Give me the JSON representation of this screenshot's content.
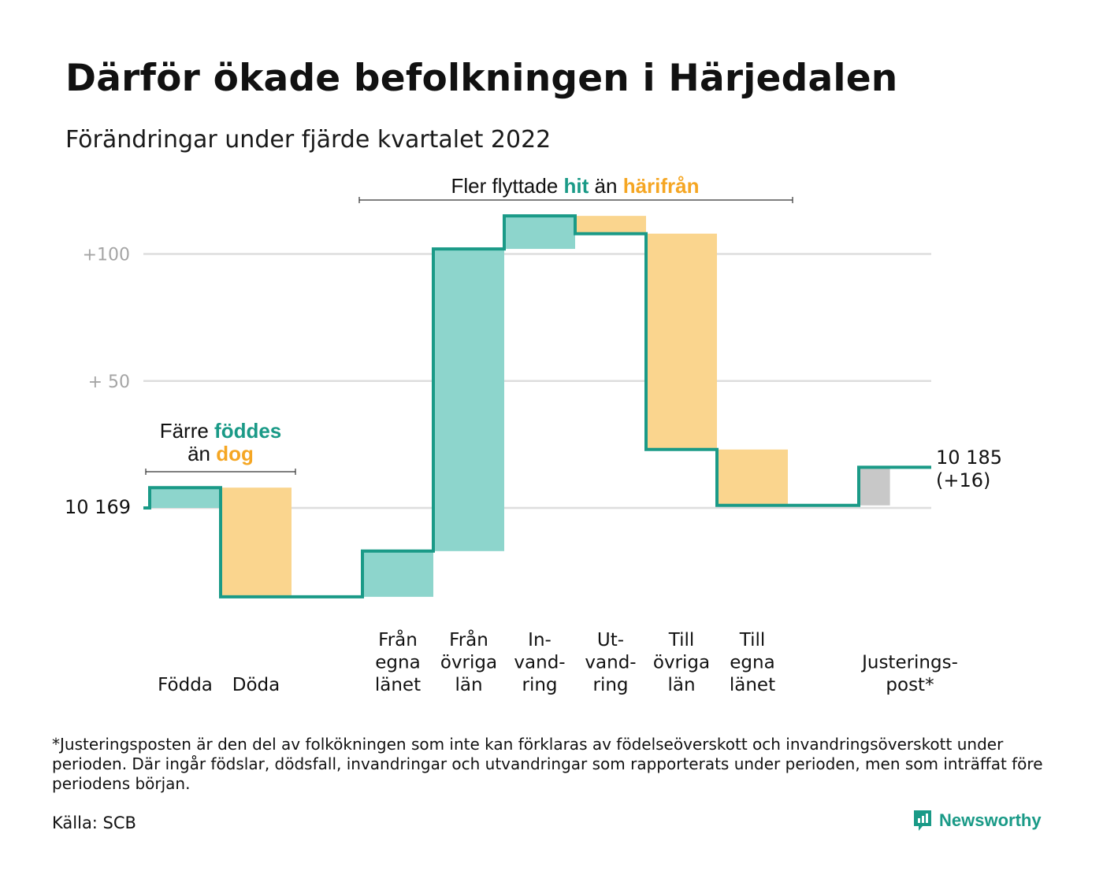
{
  "title": "Därför ökade befolkningen i Härjedalen",
  "subtitle": "Förändringar under fjärde kvartalet 2022",
  "colors": {
    "teal": "#1a9a87",
    "teal_light": "#8dd5cc",
    "orange": "#f5a623",
    "orange_light": "#fad58e",
    "gray_bar": "#c8c8c8",
    "grid": "#dddddd",
    "axis_text": "#a5a5a5"
  },
  "chart_data": {
    "type": "bar",
    "subtype": "waterfall",
    "start_label": "10 169",
    "end_label_line1": "10 185",
    "end_label_line2": "(+16)",
    "y_ticks": [
      {
        "value": 50,
        "label": "+ 50"
      },
      {
        "value": 100,
        "label": "+100"
      }
    ],
    "ylim": [
      -40,
      118
    ],
    "steps": [
      {
        "label_lines": [
          "Födda"
        ],
        "value": 8,
        "kind": "in"
      },
      {
        "label_lines": [
          "Döda"
        ],
        "value": -43,
        "kind": "out"
      },
      {
        "label_lines": [
          ""
        ],
        "value": 0,
        "kind": "none"
      },
      {
        "label_lines": [
          "Från",
          "egna",
          "länet"
        ],
        "value": 18,
        "kind": "in"
      },
      {
        "label_lines": [
          "Från",
          "övriga",
          "län"
        ],
        "value": 119,
        "kind": "in"
      },
      {
        "label_lines": [
          "In-",
          "vand-",
          "ring"
        ],
        "value": 13,
        "kind": "in"
      },
      {
        "label_lines": [
          "Ut-",
          "vand-",
          "ring"
        ],
        "value": -7,
        "kind": "out"
      },
      {
        "label_lines": [
          "Till",
          "övriga",
          "län"
        ],
        "value": -85,
        "kind": "out"
      },
      {
        "label_lines": [
          "Till",
          "egna",
          "länet"
        ],
        "value": -22,
        "kind": "out"
      },
      {
        "label_lines": [
          ""
        ],
        "value": 0,
        "kind": "none"
      },
      {
        "label_lines": [
          "Justerings-",
          "post*"
        ],
        "value": 15,
        "kind": "adjust"
      }
    ],
    "annotations": [
      {
        "text_before": "Färre ",
        "text_hl1": "föddes",
        "text_mid": "än ",
        "text_hl2": "dog",
        "text_after": ""
      },
      {
        "text_before": "Fler flyttade ",
        "text_hl1": "hit",
        "text_mid": " än ",
        "text_hl2": "härifrån",
        "text_after": ""
      }
    ]
  },
  "footnote": "*Justeringsposten är den del av folkökningen som inte kan förklaras av födelseöverskott och invandringsöverskott under perioden. Där ingår födslar, dödsfall, invandringar och utvandringar som rapporterats under perioden, men som inträffat före periodens början.",
  "source": "Källa: SCB",
  "brand": {
    "name": "Newsworthy",
    "icon": "newsworthy-logo-icon"
  }
}
